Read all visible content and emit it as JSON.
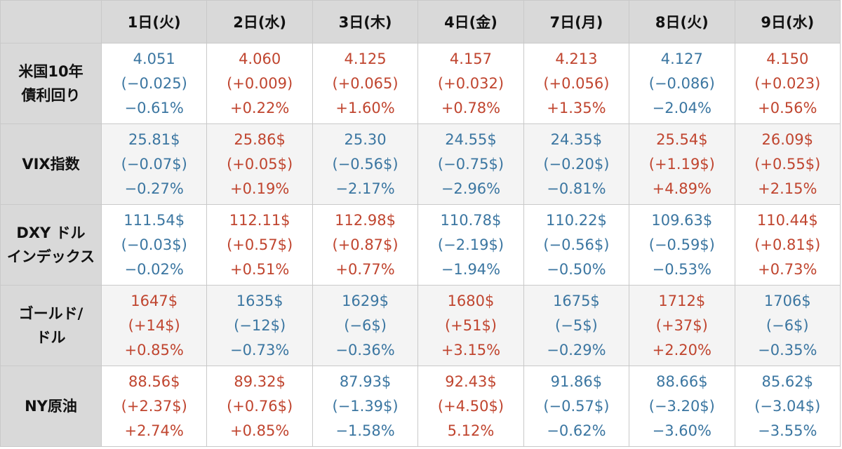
{
  "colors": {
    "up": "#c0452f",
    "down": "#3b76a1",
    "header_bg": "#d9d9d9",
    "border": "#c9c9c9"
  },
  "columns": [
    "1日(火)",
    "2日(水)",
    "3日(木)",
    "4日(金)",
    "7日(月)",
    "8日(火)",
    "9日(水)"
  ],
  "rows": [
    {
      "label": [
        "米国10年",
        "債利回り"
      ],
      "cells": [
        {
          "dir": "down",
          "lines": [
            "4.051",
            "(−0.025)",
            "−0.61%"
          ]
        },
        {
          "dir": "up",
          "lines": [
            "4.060",
            "(+0.009)",
            "+0.22%"
          ]
        },
        {
          "dir": "up",
          "lines": [
            "4.125",
            "(+0.065)",
            "+1.60%"
          ]
        },
        {
          "dir": "up",
          "lines": [
            "4.157",
            "(+0.032)",
            "+0.78%"
          ]
        },
        {
          "dir": "up",
          "lines": [
            "4.213",
            "(+0.056)",
            "+1.35%"
          ]
        },
        {
          "dir": "down",
          "lines": [
            "4.127",
            "(−0.086)",
            "−2.04%"
          ]
        },
        {
          "dir": "up",
          "lines": [
            "4.150",
            "(+0.023)",
            "+0.56%"
          ]
        }
      ]
    },
    {
      "label": [
        "VIX指数"
      ],
      "cells": [
        {
          "dir": "down",
          "lines": [
            "25.81$",
            "(−0.07$)",
            "−0.27%"
          ]
        },
        {
          "dir": "up",
          "lines": [
            "25.86$",
            "(+0.05$)",
            "+0.19%"
          ]
        },
        {
          "dir": "down",
          "lines": [
            "25.30",
            "(−0.56$)",
            "−2.17%"
          ]
        },
        {
          "dir": "down",
          "lines": [
            "24.55$",
            "(−0.75$)",
            "−2.96%"
          ]
        },
        {
          "dir": "down",
          "lines": [
            "24.35$",
            "(−0.20$)",
            "−0.81%"
          ]
        },
        {
          "dir": "up",
          "lines": [
            "25.54$",
            "(+1.19$)",
            "+4.89%"
          ]
        },
        {
          "dir": "up",
          "lines": [
            "26.09$",
            "(+0.55$)",
            "+2.15%"
          ]
        }
      ]
    },
    {
      "label": [
        "DXY ドル",
        "インデックス"
      ],
      "cells": [
        {
          "dir": "down",
          "lines": [
            "111.54$",
            "(−0.03$)",
            "−0.02%"
          ]
        },
        {
          "dir": "up",
          "lines": [
            "112.11$",
            "(+0.57$)",
            "+0.51%"
          ]
        },
        {
          "dir": "up",
          "lines": [
            "112.98$",
            "(+0.87$)",
            "+0.77%"
          ]
        },
        {
          "dir": "down",
          "lines": [
            "110.78$",
            "(−2.19$)",
            "−1.94%"
          ]
        },
        {
          "dir": "down",
          "lines": [
            "110.22$",
            "(−0.56$)",
            "−0.50%"
          ]
        },
        {
          "dir": "down",
          "lines": [
            "109.63$",
            "(−0.59$)",
            "−0.53%"
          ]
        },
        {
          "dir": "up",
          "lines": [
            "110.44$",
            "(+0.81$)",
            "+0.73%"
          ]
        }
      ]
    },
    {
      "label": [
        "ゴールド/",
        "ドル"
      ],
      "cells": [
        {
          "dir": "up",
          "lines": [
            "1647$",
            "(+14$)",
            "+0.85%"
          ]
        },
        {
          "dir": "down",
          "lines": [
            "1635$",
            "(−12$)",
            "−0.73%"
          ]
        },
        {
          "dir": "down",
          "lines": [
            "1629$",
            "(−6$)",
            "−0.36%"
          ]
        },
        {
          "dir": "up",
          "lines": [
            "1680$",
            "(+51$)",
            "+3.15%"
          ]
        },
        {
          "dir": "down",
          "lines": [
            "1675$",
            "(−5$)",
            "−0.29%"
          ]
        },
        {
          "dir": "up",
          "lines": [
            "1712$",
            "(+37$)",
            "+2.20%"
          ]
        },
        {
          "dir": "down",
          "lines": [
            "1706$",
            "(−6$)",
            "−0.35%"
          ]
        }
      ]
    },
    {
      "label": [
        "NY原油"
      ],
      "cells": [
        {
          "dir": "up",
          "lines": [
            "88.56$",
            "(+2.37$)",
            "+2.74%"
          ]
        },
        {
          "dir": "up",
          "lines": [
            "89.32$",
            "(+0.76$)",
            "+0.85%"
          ]
        },
        {
          "dir": "down",
          "lines": [
            "87.93$",
            "(−1.39$)",
            "−1.58%"
          ]
        },
        {
          "dir": "up",
          "lines": [
            "92.43$",
            "(+4.50$)",
            "5.12%"
          ]
        },
        {
          "dir": "down",
          "lines": [
            "91.86$",
            "(−0.57$)",
            "−0.62%"
          ]
        },
        {
          "dir": "down",
          "lines": [
            "88.66$",
            "(−3.20$)",
            "−3.60%"
          ]
        },
        {
          "dir": "down",
          "lines": [
            "85.62$",
            "(−3.04$)",
            "−3.55%"
          ]
        }
      ]
    }
  ]
}
